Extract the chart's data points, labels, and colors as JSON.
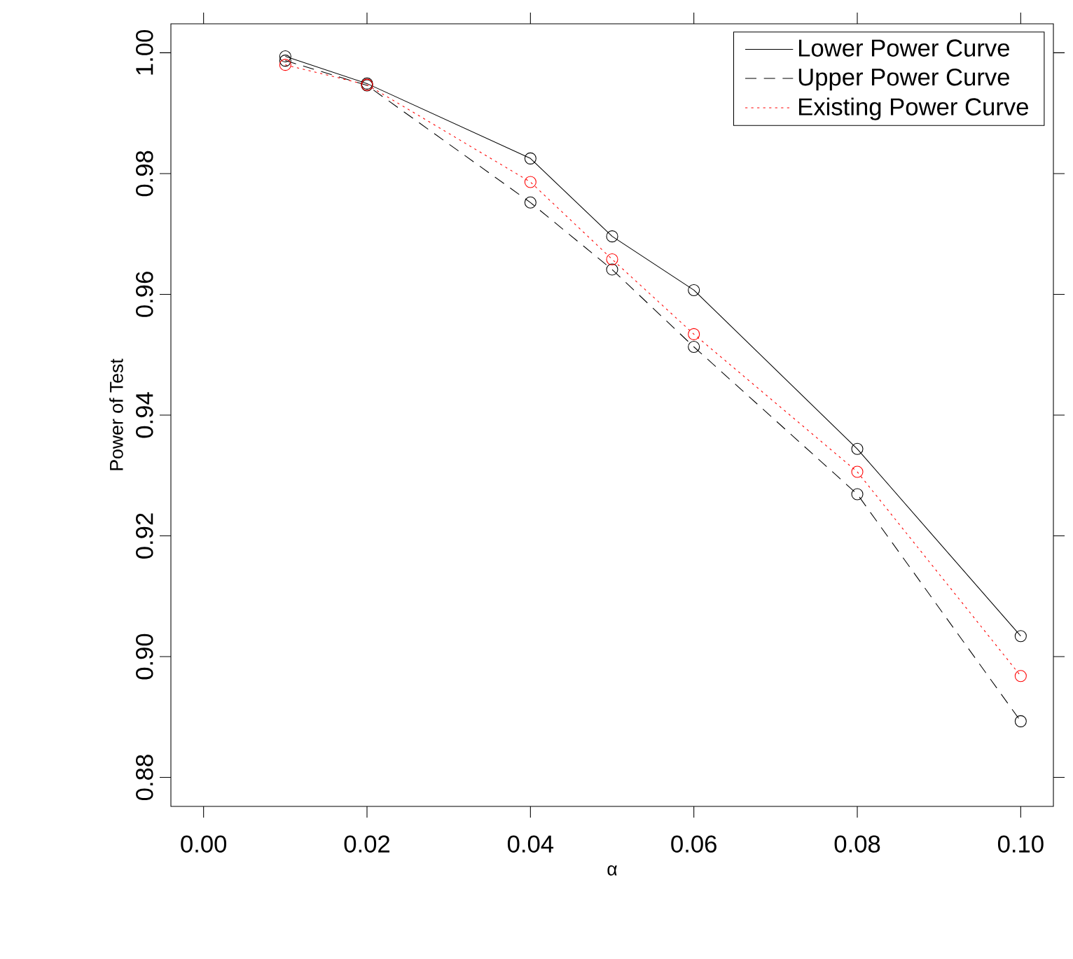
{
  "chart_data": {
    "type": "line",
    "xlabel": "α",
    "ylabel": "Power of Test",
    "x": [
      0.01,
      0.02,
      0.04,
      0.05,
      0.06,
      0.08,
      0.1
    ],
    "series": [
      {
        "name": "Lower Power Curve",
        "color": "#000000",
        "line_style": "solid",
        "values": [
          0.9994,
          0.9949,
          0.9825,
          0.9696,
          0.9607,
          0.9344,
          0.9034
        ]
      },
      {
        "name": "Upper Power Curve",
        "color": "#000000",
        "line_style": "dashed",
        "values": [
          0.9987,
          0.9946,
          0.9752,
          0.9641,
          0.9513,
          0.9269,
          0.8893
        ]
      },
      {
        "name": "Existing Power Curve",
        "color": "#ff0000",
        "line_style": "dotted",
        "values": [
          0.998,
          0.9947,
          0.9786,
          0.9658,
          0.9534,
          0.9306,
          0.8968
        ]
      }
    ],
    "marker": "circle",
    "legend": "top right",
    "xlim": [
      -0.004,
      0.104
    ],
    "ylim": [
      0.8752,
      1.0048
    ],
    "xticks": [
      {
        "value": 0,
        "label": "0.00"
      },
      {
        "value": 0.02,
        "label": "0.02"
      },
      {
        "value": 0.04,
        "label": "0.04"
      },
      {
        "value": 0.06,
        "label": "0.06"
      },
      {
        "value": 0.08,
        "label": "0.08"
      },
      {
        "value": 0.1,
        "label": "0.10"
      }
    ],
    "yticks": [
      {
        "value": 0.88,
        "label": "0.88"
      },
      {
        "value": 0.9,
        "label": "0.90"
      },
      {
        "value": 0.92,
        "label": "0.92"
      },
      {
        "value": 0.94,
        "label": "0.94"
      },
      {
        "value": 0.96,
        "label": "0.96"
      },
      {
        "value": 0.98,
        "label": "0.98"
      },
      {
        "value": 1.0,
        "label": "1.00"
      }
    ]
  }
}
